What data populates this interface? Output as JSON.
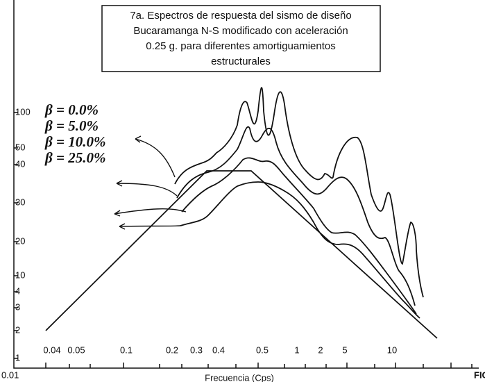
{
  "figure": {
    "title_lines": [
      "7a. Espectros de respuesta del sismo de diseño",
      "Bucaramanga N-S modificado con aceleración",
      "0.25 g. para diferentes amortiguamientos",
      "estructurales"
    ],
    "legend": [
      "β = 0.0%",
      "β = 5.0%",
      "β = 10.0%",
      "β = 25.0%"
    ],
    "y_tick_labels": [
      "100",
      "50",
      "40",
      "30",
      "20",
      "10",
      "4",
      "3",
      "2",
      "1"
    ],
    "x_tick_labels": [
      "0.04",
      "0.05",
      "0.1",
      "0.2",
      "0.3",
      "0.4",
      "0.5",
      "1",
      "2",
      "5",
      "10"
    ],
    "x_origin_label": "0.01",
    "x_axis_label": "Frecuencia (Cps)",
    "corner_label": "FIG"
  }
}
